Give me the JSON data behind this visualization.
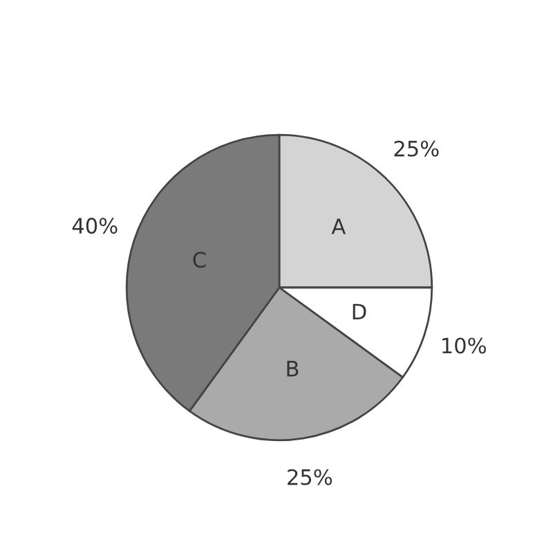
{
  "chart_data": {
    "type": "pie",
    "categories": [
      "A",
      "D",
      "B",
      "C"
    ],
    "values": [
      25,
      10,
      25,
      40
    ],
    "colors": [
      "#d4d4d4",
      "#ffffff",
      "#aaaaaa",
      "#7a7a7a"
    ],
    "value_labels": [
      "25%",
      "10%",
      "25%",
      "40%"
    ]
  }
}
